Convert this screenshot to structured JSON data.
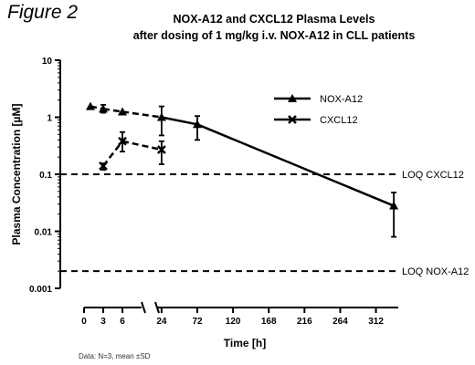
{
  "figure_label": "Figure 2",
  "footnote": "Data: N=3, mean ±SD",
  "chart_data": {
    "type": "line",
    "title_lines": [
      "NOX-A12 and CXCL12 Plasma Levels",
      "after dosing of 1 mg/kg i.v. NOX-A12 in CLL patients"
    ],
    "xlabel": "Time [h]",
    "ylabel": "Plasma Concentration [µM]",
    "y_scale": "log",
    "ylim": [
      0.001,
      10
    ],
    "y_ticks": [
      {
        "value": 10,
        "label": "10"
      },
      {
        "value": 1,
        "label": "1"
      },
      {
        "value": 0.1,
        "label": "0.1"
      },
      {
        "value": 0.01,
        "label": "0.01"
      },
      {
        "value": 0.001,
        "label": "0.001"
      }
    ],
    "x_axis_broken": true,
    "x_ticks_segment1": [
      {
        "value": 0,
        "label": "0"
      },
      {
        "value": 3,
        "label": "3"
      },
      {
        "value": 6,
        "label": "6"
      }
    ],
    "x_ticks_segment2": [
      {
        "value": 24,
        "label": "24"
      },
      {
        "value": 72,
        "label": "72"
      },
      {
        "value": 120,
        "label": "120"
      },
      {
        "value": 168,
        "label": "168"
      },
      {
        "value": 216,
        "label": "216"
      },
      {
        "value": 264,
        "label": "264"
      },
      {
        "value": 312,
        "label": "312"
      }
    ],
    "legend_position": "right",
    "series": [
      {
        "name": "NOX-A12",
        "marker": "triangle",
        "points": [
          {
            "x": 1,
            "y": 1.55,
            "err_lo": 1.55,
            "err_hi": 1.55
          },
          {
            "x": 3,
            "y": 1.4,
            "err_lo": 1.2,
            "err_hi": 1.65
          },
          {
            "x": 6,
            "y": 1.25,
            "err_lo": 1.25,
            "err_hi": 1.25
          },
          {
            "x": 24,
            "y": 1.0,
            "err_lo": 0.48,
            "err_hi": 1.55
          },
          {
            "x": 72,
            "y": 0.75,
            "err_lo": 0.4,
            "err_hi": 1.05
          },
          {
            "x": 336,
            "y": 0.028,
            "err_lo": 0.008,
            "err_hi": 0.048
          }
        ]
      },
      {
        "name": "CXCL12",
        "marker": "cross",
        "points": [
          {
            "x": 3,
            "y": 0.14,
            "err_lo": 0.12,
            "err_hi": 0.155
          },
          {
            "x": 6,
            "y": 0.38,
            "err_lo": 0.25,
            "err_hi": 0.55
          },
          {
            "x": 24,
            "y": 0.27,
            "err_lo": 0.15,
            "err_hi": 0.38
          }
        ]
      }
    ],
    "reference_lines": [
      {
        "label": "LOQ CXCL12",
        "y": 0.1
      },
      {
        "label": "LOQ NOX-A12",
        "y": 0.002
      }
    ]
  }
}
